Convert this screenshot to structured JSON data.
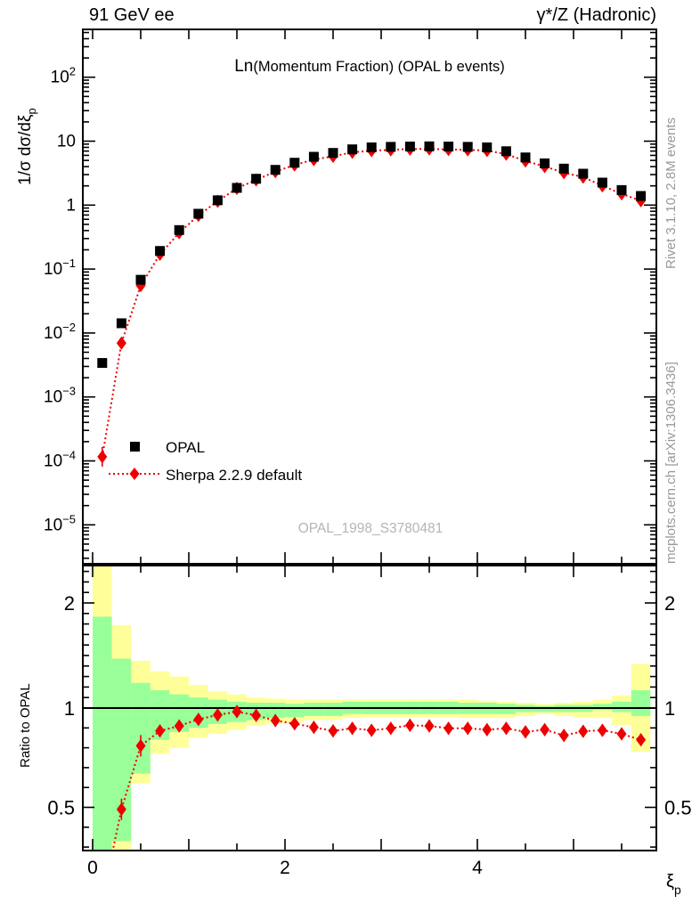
{
  "header": {
    "left_title": "91 GeV ee",
    "right_title": "γ*/Z (Hadronic)"
  },
  "side_notes": {
    "rivet_info": "Rivet 3.1.10,  2.8M events",
    "mcplots_info": "mcplots.cern.ch [arXiv:1306.3436]"
  },
  "watermark": "OPAL_1998_S3780481",
  "legend": {
    "entries": [
      {
        "label": "OPAL",
        "marker": "square",
        "color": "#000000"
      },
      {
        "label": "Sherpa 2.2.9 default",
        "marker": "diamond",
        "color": "#ee0000",
        "line": "dotted"
      }
    ]
  },
  "chart_data": {
    "type": "line",
    "title_prefix": "Ln",
    "title_suffix": "(Momentum Fraction) (OPAL b events)",
    "xlabel_main": "ξ",
    "xlabel_sub": "p",
    "ylabel_main": "1/σ dσ/dξ",
    "ylabel_sub": "p",
    "ratio_ylabel": "Ratio to OPAL",
    "x_range": [
      -0.1,
      5.86
    ],
    "y_log_top_exponent": 2.75,
    "y_log_bottom_exponent": -5.6,
    "ratio_range": [
      0.28,
      2.36
    ],
    "grid": false,
    "legend_position": "lower-left-of-main-panel",
    "x_tick_labels": [
      "0",
      "2",
      "4"
    ],
    "x_tick_label_values": [
      0,
      2,
      4
    ],
    "x_minor_tick_step": 0.5,
    "y_tick_exponents": [
      2,
      1,
      0,
      -1,
      -2,
      -3,
      -4,
      -5
    ],
    "ratio_tick_labels": [
      "2",
      "1",
      "0.5"
    ],
    "ratio_tick_values": [
      2,
      1,
      0.5
    ],
    "bin_width": 0.2,
    "x": [
      0.1,
      0.3,
      0.5,
      0.7,
      0.9,
      1.1,
      1.3,
      1.5,
      1.7,
      1.9,
      2.1,
      2.3,
      2.5,
      2.7,
      2.9,
      3.1,
      3.3,
      3.5,
      3.7,
      3.9,
      4.1,
      4.3,
      4.5,
      4.7,
      4.9,
      5.1,
      5.3,
      5.5,
      5.7
    ],
    "series": [
      {
        "name": "OPAL",
        "marker": "square",
        "color": "#000000",
        "values": [
          0.0034,
          0.0142,
          0.068,
          0.192,
          0.407,
          0.733,
          1.19,
          1.86,
          2.58,
          3.56,
          4.6,
          5.7,
          6.55,
          7.45,
          8.0,
          8.15,
          8.25,
          8.3,
          8.25,
          8.15,
          8.0,
          6.96,
          5.57,
          4.5,
          3.72,
          3.1,
          2.25,
          1.72,
          1.39
        ]
      },
      {
        "name": "Sherpa 2.2.9 default",
        "marker": "diamond",
        "color": "#ee0000",
        "line": "dotted",
        "values": [
          0.000116,
          0.00696,
          0.0551,
          0.17,
          0.37,
          0.691,
          1.15,
          1.83,
          2.48,
          3.34,
          4.24,
          5.15,
          5.8,
          6.69,
          7.1,
          7.32,
          7.53,
          7.55,
          7.41,
          7.32,
          7.13,
          6.25,
          4.9,
          4.01,
          3.21,
          2.74,
          2.0,
          1.5,
          1.17
        ]
      }
    ],
    "ratio": {
      "values": [
        0.034,
        0.49,
        0.81,
        0.885,
        0.91,
        0.943,
        0.965,
        0.982,
        0.963,
        0.937,
        0.921,
        0.903,
        0.885,
        0.898,
        0.888,
        0.898,
        0.913,
        0.91,
        0.898,
        0.898,
        0.891,
        0.898,
        0.88,
        0.891,
        0.862,
        0.883,
        0.888,
        0.87,
        0.84
      ],
      "bands": {
        "yellow_hi": [
          2.36,
          1.79,
          1.45,
          1.35,
          1.3,
          1.22,
          1.16,
          1.13,
          1.1,
          1.09,
          1.08,
          1.08,
          1.08,
          1.08,
          1.08,
          1.08,
          1.08,
          1.08,
          1.08,
          1.08,
          1.07,
          1.06,
          1.05,
          1.04,
          1.05,
          1.06,
          1.08,
          1.12,
          1.42
        ],
        "green_hi": [
          1.87,
          1.47,
          1.24,
          1.17,
          1.13,
          1.1,
          1.08,
          1.06,
          1.05,
          1.05,
          1.04,
          1.05,
          1.05,
          1.06,
          1.06,
          1.06,
          1.06,
          1.06,
          1.06,
          1.05,
          1.05,
          1.04,
          1.03,
          1.02,
          1.03,
          1.03,
          1.04,
          1.06,
          1.17
        ],
        "green_lo": [
          0.28,
          0.33,
          0.67,
          0.84,
          0.88,
          0.9,
          0.92,
          0.93,
          0.94,
          0.95,
          0.955,
          0.96,
          0.96,
          0.97,
          0.97,
          0.97,
          0.97,
          0.97,
          0.97,
          0.97,
          0.97,
          0.97,
          0.98,
          0.98,
          0.98,
          0.98,
          0.99,
          0.98,
          0.96
        ],
        "yellow_lo": [
          0.28,
          0.28,
          0.62,
          0.77,
          0.8,
          0.85,
          0.87,
          0.89,
          0.91,
          0.92,
          0.93,
          0.94,
          0.94,
          0.95,
          0.955,
          0.955,
          0.955,
          0.955,
          0.955,
          0.95,
          0.95,
          0.95,
          0.96,
          0.97,
          0.96,
          0.95,
          0.95,
          0.915,
          0.78
        ]
      },
      "band_colors": {
        "outer": "#ffff99",
        "inner": "#99ff99"
      }
    },
    "colors": {
      "mc_red": "#ee0000",
      "data_black": "#000000",
      "note_gray": "#999999",
      "watermark_gray": "#b5b5b5"
    }
  }
}
